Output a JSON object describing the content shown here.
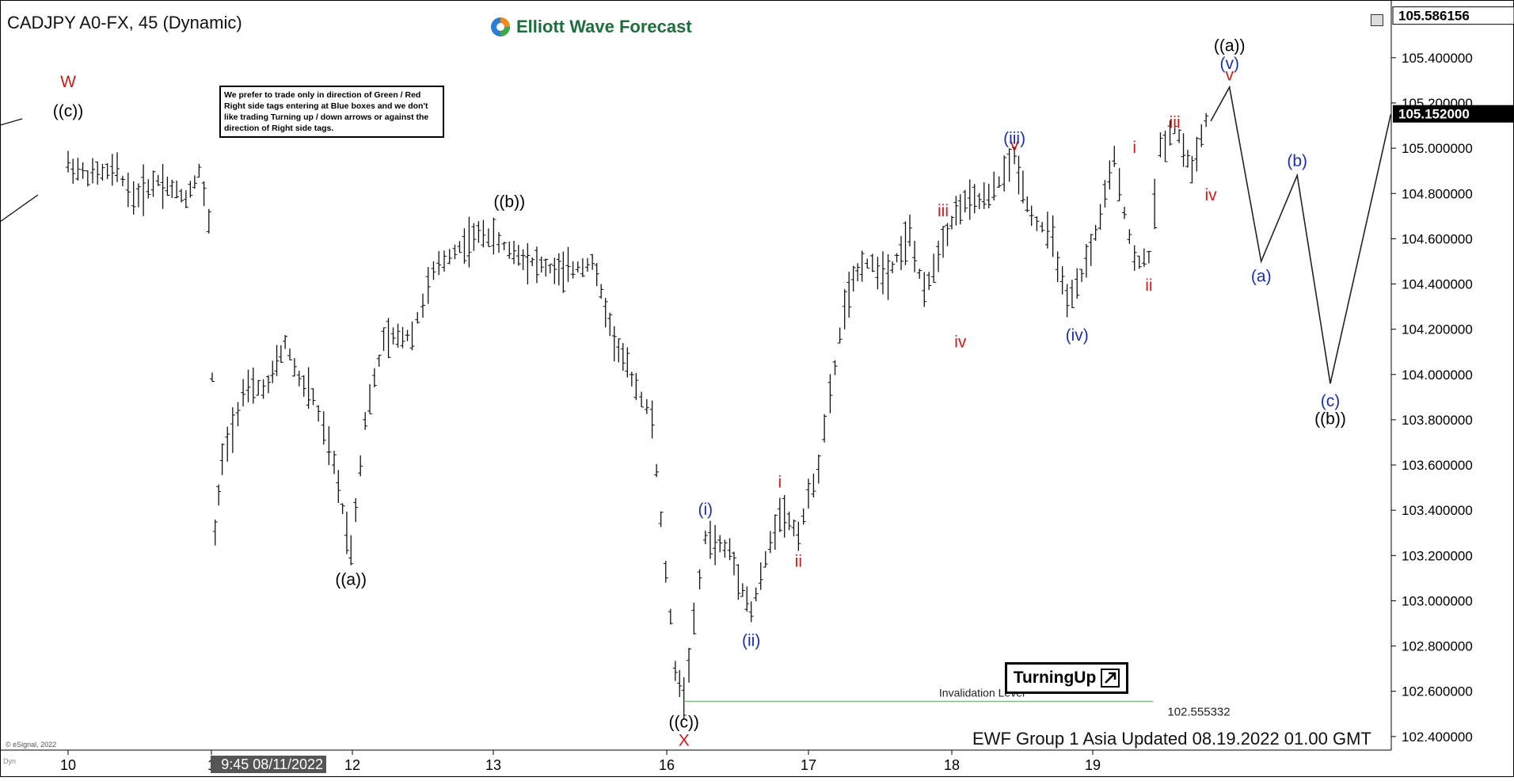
{
  "symbol_title": "CADJPY A0-FX, 45 (Dynamic)",
  "logo_text": "Elliott Wave Forecast",
  "note_text": "We prefer to trade only in direction of Green / Red Right side tags entering at Blue boxes and we don't like trading Turning up / down arrows or against the direction of Right side tags.",
  "turning_label": "TurningUp",
  "updated_text": "EWF Group 1 Asia Updated 08.19.2022 01.00 GMT",
  "copyright": "© eSignal, 2022",
  "mini_label": "Dyn",
  "cursor_date": "9:45 08/11/2022",
  "invalidation_label": "Invalidation Level",
  "invalidation_value": "102.555332",
  "price_top_label": "105.586156",
  "price_current_label": "105.152000",
  "colors": {
    "invalidation": "#5ad15a",
    "wave_red": "#d11a1a",
    "wave_blue": "#1b2fb5",
    "wave_black": "#000000",
    "current_price_bg": "#000000"
  },
  "chart_data": {
    "type": "line",
    "ylim": [
      102.34,
      105.62
    ],
    "yticks": [
      "105.400000",
      "105.200000",
      "105.000000",
      "104.800000",
      "104.600000",
      "104.400000",
      "104.200000",
      "104.000000",
      "103.800000",
      "103.600000",
      "103.400000",
      "103.200000",
      "103.000000",
      "102.800000",
      "102.600000",
      "102.400000"
    ],
    "xtick_labels": [
      "10",
      "1",
      "12",
      "13",
      "16",
      "17",
      "18",
      "19"
    ],
    "price_series": [
      {
        "t": 0.0,
        "p": 104.93
      },
      {
        "t": 0.12,
        "p": 104.88
      },
      {
        "t": 0.3,
        "p": 104.9
      },
      {
        "t": 0.4,
        "p": 104.78
      },
      {
        "t": 0.55,
        "p": 104.86
      },
      {
        "t": 0.72,
        "p": 104.78
      },
      {
        "t": 0.8,
        "p": 104.9
      },
      {
        "t": 0.86,
        "p": 104.68
      },
      {
        "t": 0.9,
        "p": 103.3
      },
      {
        "t": 0.95,
        "p": 103.62
      },
      {
        "t": 1.1,
        "p": 103.92
      },
      {
        "t": 1.28,
        "p": 103.95
      },
      {
        "t": 1.4,
        "p": 104.14
      },
      {
        "t": 1.5,
        "p": 103.98
      },
      {
        "t": 1.6,
        "p": 103.9
      },
      {
        "t": 1.75,
        "p": 103.6
      },
      {
        "t": 1.87,
        "p": 103.22
      },
      {
        "t": 1.97,
        "p": 103.8
      },
      {
        "t": 2.1,
        "p": 104.15
      },
      {
        "t": 2.3,
        "p": 104.18
      },
      {
        "t": 2.45,
        "p": 104.45
      },
      {
        "t": 2.6,
        "p": 104.55
      },
      {
        "t": 2.8,
        "p": 104.63
      },
      {
        "t": 2.98,
        "p": 104.55
      },
      {
        "t": 3.2,
        "p": 104.48
      },
      {
        "t": 3.35,
        "p": 104.45
      },
      {
        "t": 3.55,
        "p": 104.5
      },
      {
        "t": 3.7,
        "p": 104.15
      },
      {
        "t": 3.85,
        "p": 103.95
      },
      {
        "t": 3.96,
        "p": 103.8
      },
      {
        "t": 4.02,
        "p": 103.35
      },
      {
        "t": 4.12,
        "p": 102.7
      },
      {
        "t": 4.18,
        "p": 102.57
      },
      {
        "t": 4.25,
        "p": 102.9
      },
      {
        "t": 4.33,
        "p": 103.28
      },
      {
        "t": 4.5,
        "p": 103.22
      },
      {
        "t": 4.65,
        "p": 102.95
      },
      {
        "t": 4.85,
        "p": 103.4
      },
      {
        "t": 4.98,
        "p": 103.3
      },
      {
        "t": 5.12,
        "p": 103.6
      },
      {
        "t": 5.2,
        "p": 103.9
      },
      {
        "t": 5.3,
        "p": 104.3
      },
      {
        "t": 5.42,
        "p": 104.5
      },
      {
        "t": 5.6,
        "p": 104.45
      },
      {
        "t": 5.75,
        "p": 104.62
      },
      {
        "t": 5.85,
        "p": 104.35
      },
      {
        "t": 5.98,
        "p": 104.6
      },
      {
        "t": 6.1,
        "p": 104.75
      },
      {
        "t": 6.3,
        "p": 104.78
      },
      {
        "t": 6.48,
        "p": 104.96
      },
      {
        "t": 6.6,
        "p": 104.7
      },
      {
        "t": 6.75,
        "p": 104.6
      },
      {
        "t": 6.85,
        "p": 104.3
      },
      {
        "t": 6.92,
        "p": 104.38
      },
      {
        "t": 7.05,
        "p": 104.62
      },
      {
        "t": 7.18,
        "p": 104.95
      },
      {
        "t": 7.32,
        "p": 104.5
      },
      {
        "t": 7.42,
        "p": 104.52
      },
      {
        "t": 7.5,
        "p": 105.0
      },
      {
        "t": 7.6,
        "p": 105.1
      },
      {
        "t": 7.72,
        "p": 104.9
      },
      {
        "t": 7.85,
        "p": 105.2
      }
    ],
    "projection": [
      {
        "t": 7.85,
        "p": 105.12
      },
      {
        "t": 7.98,
        "p": 105.27
      },
      {
        "t": 8.2,
        "p": 104.5
      },
      {
        "t": 8.45,
        "p": 104.88
      },
      {
        "t": 8.68,
        "p": 103.96
      },
      {
        "t": 9.1,
        "p": 105.15
      }
    ],
    "invalidation": {
      "value": 102.555332,
      "t_start": 4.18,
      "t_end": 7.45
    },
    "wave_labels": [
      {
        "text": "W",
        "color": "red",
        "t": 0.0,
        "p": 105.27
      },
      {
        "text": "((c))",
        "color": "black",
        "t": 0.0,
        "p": 105.14
      },
      {
        "text": "((b))",
        "color": "black",
        "t": 2.98,
        "p": 104.74
      },
      {
        "text": "((a))",
        "color": "black",
        "t": 1.87,
        "p": 103.07
      },
      {
        "text": "((c))",
        "color": "black",
        "t": 4.18,
        "p": 102.44
      },
      {
        "text": "X",
        "color": "red",
        "t": 4.18,
        "p": 102.36
      },
      {
        "text": "(i)",
        "color": "blue",
        "t": 4.33,
        "p": 103.38
      },
      {
        "text": "(ii)",
        "color": "blue",
        "t": 4.65,
        "p": 102.8
      },
      {
        "text": "i",
        "color": "red",
        "t": 4.85,
        "p": 103.5
      },
      {
        "text": "ii",
        "color": "red",
        "t": 4.98,
        "p": 103.15
      },
      {
        "text": "iii",
        "color": "red",
        "t": 5.98,
        "p": 104.7
      },
      {
        "text": "iv",
        "color": "red",
        "t": 6.1,
        "p": 104.12
      },
      {
        "text": "v",
        "color": "red",
        "t": 6.48,
        "p": 104.99
      },
      {
        "text": "(iii)",
        "color": "blue",
        "t": 6.48,
        "p": 105.02
      },
      {
        "text": "(iv)",
        "color": "blue",
        "t": 6.92,
        "p": 104.15
      },
      {
        "text": "i",
        "color": "red",
        "t": 7.32,
        "p": 104.98
      },
      {
        "text": "ii",
        "color": "red",
        "t": 7.42,
        "p": 104.37
      },
      {
        "text": "iii",
        "color": "red",
        "t": 7.6,
        "p": 105.09
      },
      {
        "text": "iv",
        "color": "red",
        "t": 7.85,
        "p": 104.77
      },
      {
        "text": "v",
        "color": "red",
        "t": 7.98,
        "p": 105.3
      },
      {
        "text": "(v)",
        "color": "blue",
        "t": 7.98,
        "p": 105.35
      },
      {
        "text": "((a))",
        "color": "black",
        "t": 7.98,
        "p": 105.43
      },
      {
        "text": "(a)",
        "color": "blue",
        "t": 8.2,
        "p": 104.41
      },
      {
        "text": "(b)",
        "color": "blue",
        "t": 8.45,
        "p": 104.92
      },
      {
        "text": "(c)",
        "color": "blue",
        "t": 8.68,
        "p": 103.86
      },
      {
        "text": "((b))",
        "color": "black",
        "t": 8.68,
        "p": 103.78
      }
    ]
  }
}
